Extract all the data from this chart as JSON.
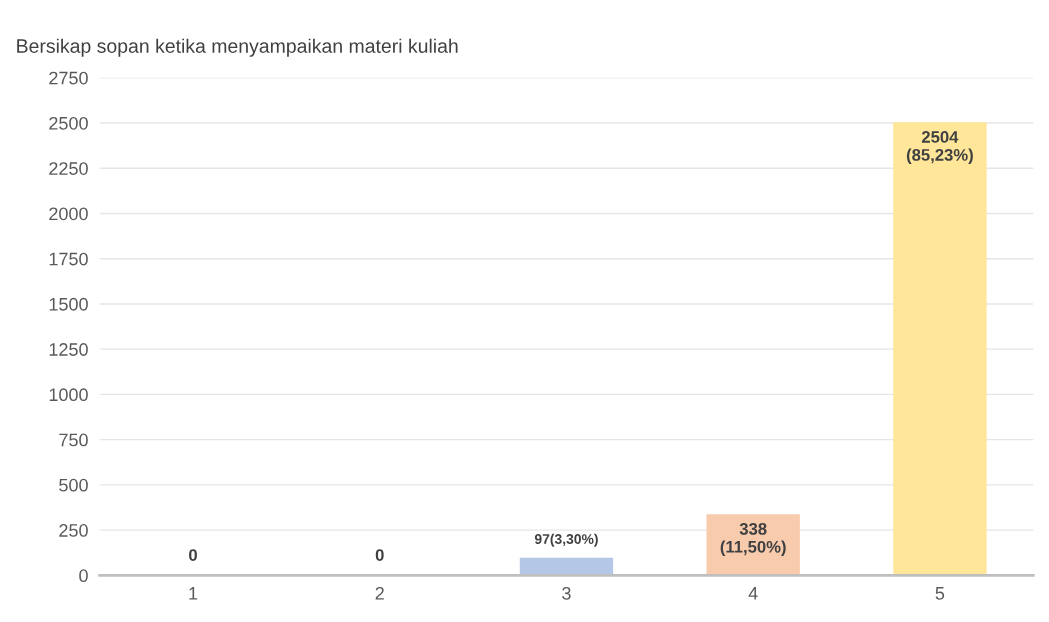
{
  "chart_data": {
    "type": "bar",
    "title": "Bersikap sopan ketika menyampaikan materi kuliah",
    "categories": [
      "1",
      "2",
      "3",
      "4",
      "5"
    ],
    "values": [
      0,
      0,
      97,
      338,
      2504
    ],
    "colors": [
      "#b4c7e7",
      "#b4c7e7",
      "#b4c7e7",
      "#f8cbad",
      "#ffe699"
    ],
    "value_labels": [
      "0",
      "0",
      "97(3,30%)",
      "338\n(11,50%)",
      "2504\n(85,23%)"
    ],
    "ylim": [
      0,
      2750
    ],
    "yticks": [
      0,
      250,
      500,
      750,
      1000,
      1250,
      1500,
      1750,
      2000,
      2250,
      2500,
      2750
    ],
    "grid": "y",
    "legend": false
  }
}
